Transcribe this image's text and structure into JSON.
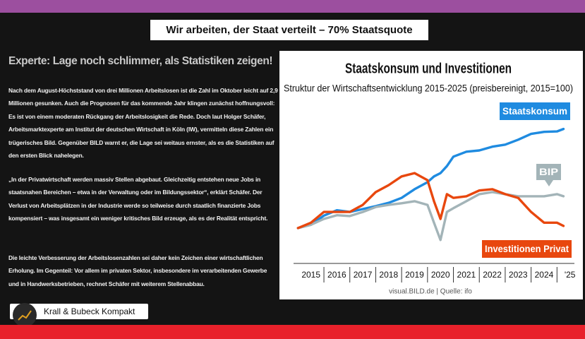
{
  "header": {
    "title": "Wir arbeiten, der Staat verteilt – 70% Staatsquote"
  },
  "article": {
    "heading": "Experte: Lage noch schlimmer, als Statistiken zeigen!",
    "paragraphs": [
      "Nach dem August-Höchststand von drei Millionen Arbeitslosen ist die Zahl im Oktober leicht auf 2,9 Millionen gesunken. Auch die Prognosen für das kommende Jahr klingen zunächst hoffnungsvoll: Es ist von einem moderaten Rückgang der Arbeitslosigkeit die Rede. Doch laut Holger Schäfer, Arbeitsmarktexperte am Institut der deutschen Wirtschaft in Köln (IW), vermitteln diese Zahlen ein trügerisches Bild. Gegenüber BILD warnt er, die Lage sei weitaus ernster, als es die Statistiken auf den ersten Blick nahelegen.",
      "„In der Privatwirtschaft werden massiv Stellen abgebaut. Gleichzeitig entstehen neue Jobs in staatsnahen Bereichen – etwa in der Verwaltung oder im Bildungssektor“, erklärt Schäfer. Der Verlust von Arbeitsplätzen in der Industrie werde so teilweise durch staatlich finanzierte Jobs kompensiert – was insgesamt ein weniger kritisches Bild erzeuge, als es der Realität entspricht.",
      "Die leichte Verbesserung der Arbeitslosenzahlen sei daher kein Zeichen einer wirtschaftlichen Erholung. Im Gegenteil: Vor allem im privaten Sektor, insbesondere im verarbeitenden Gewerbe und in Handwerksbetrieben, rechnet Schäfer mit weiterem Stellenabbau."
    ]
  },
  "chart_data": {
    "type": "line",
    "title": "Staatskonsum und Investitionen",
    "subtitle": "Struktur der Wirtschaftsentwicklung 2015-2025 (preisbereinigt, 2015=100)",
    "source": "visual.BILD.de | Quelle: ifo",
    "x": [
      2015,
      2015.5,
      2016,
      2016.5,
      2017,
      2017.5,
      2018,
      2018.5,
      2019,
      2019.5,
      2020,
      2020.25,
      2020.5,
      2020.75,
      2021,
      2021.5,
      2022,
      2022.5,
      2023,
      2023.5,
      2024,
      2024.5,
      2025,
      2025.25
    ],
    "xlim": [
      2014.8,
      2025.7
    ],
    "xticks": [
      2015,
      2016,
      2017,
      2018,
      2019,
      2020,
      2021,
      2022,
      2023,
      2024,
      {
        "value": 2025,
        "label": "'25"
      }
    ],
    "ylim": [
      94,
      126
    ],
    "series": [
      {
        "name": "Staatskonsum",
        "color": "#1f8be0",
        "values": [
          99.5,
          100.3,
          102.5,
          103.8,
          103.4,
          104.1,
          104.8,
          105.6,
          106.8,
          108.9,
          110.6,
          112.0,
          112.8,
          114.5,
          116.8,
          118.0,
          118.3,
          119.2,
          119.7,
          120.9,
          122.3,
          122.8,
          122.9,
          123.5
        ]
      },
      {
        "name": "BIP",
        "color": "#a3b4b8",
        "values": [
          99.5,
          100.3,
          101.7,
          102.6,
          102.4,
          103.4,
          104.6,
          105.1,
          105.5,
          106.0,
          105.1,
          100.8,
          96.6,
          103.4,
          104.3,
          106.0,
          107.7,
          108.2,
          107.7,
          107.2,
          107.2,
          107.2,
          107.7,
          107.2
        ]
      },
      {
        "name": "Investitionen Privat",
        "color": "#e8470e",
        "values": [
          99.5,
          100.8,
          103.4,
          103.4,
          103.4,
          105.1,
          108.2,
          109.9,
          112.0,
          112.8,
          111.1,
          106.0,
          101.7,
          107.7,
          106.8,
          107.2,
          108.6,
          108.9,
          107.7,
          106.8,
          103.4,
          100.8,
          100.8,
          100.0
        ]
      }
    ]
  },
  "channel": {
    "name": "Krall & Bubeck Kompakt"
  }
}
